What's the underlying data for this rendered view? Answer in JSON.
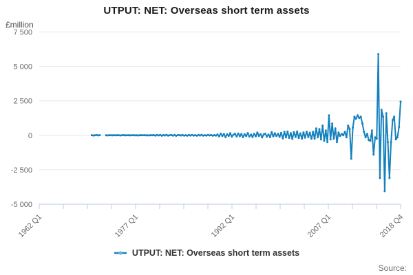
{
  "page": {
    "source_label": "Source:"
  },
  "colors": {
    "line": "#1380be",
    "legend_marker_center": "#6db0de",
    "grid": "#e6e6e6",
    "axis": "#c9d4e4",
    "title_text": "#1a1a1a",
    "tick_text": "#666666",
    "unit_text": "#4d4d4d",
    "legend_text": "#333333",
    "source_text": "#707070"
  },
  "chart_data": {
    "type": "line",
    "title": "UTPUT: NET: Overseas short term assets",
    "unit_label": "£million",
    "grid": "horizontal",
    "legend": {
      "position": "bottom",
      "label": "UTPUT: NET: Overseas short term assets"
    },
    "y_axis": {
      "min": -5000,
      "max": 7500,
      "ticks": [
        {
          "label": "7 500",
          "value": 7500
        },
        {
          "label": "5 000",
          "value": 5000
        },
        {
          "label": "2 500",
          "value": 2500
        },
        {
          "label": "0",
          "value": 0
        },
        {
          "label": "-2 500",
          "value": -2500
        },
        {
          "label": "-5 000",
          "value": -5000
        }
      ]
    },
    "x_axis": {
      "start": "1962 Q1",
      "end": "2018 Q4",
      "tick_count": 16,
      "labeled_ticks": [
        {
          "index": 0,
          "label": "1962 Q1"
        },
        {
          "index": 4,
          "label": "1977 Q1"
        },
        {
          "index": 8,
          "label": "1992 Q1"
        },
        {
          "index": 12,
          "label": "2007 Q1"
        },
        {
          "index": 15,
          "label": "2018 Q4"
        }
      ]
    },
    "series": [
      {
        "name": "UTPUT: NET: Overseas short term assets",
        "color": "#1380be",
        "frequency": "quarterly",
        "start": "1970 Q2",
        "values": [
          10,
          -15,
          5,
          20,
          -10,
          8,
          null,
          null,
          null,
          5,
          -8,
          12,
          3,
          -6,
          10,
          -4,
          8,
          2,
          -9,
          6,
          14,
          -5,
          3,
          9,
          -7,
          2,
          11,
          -3,
          6,
          -10,
          4,
          8,
          -2,
          12,
          -6,
          3,
          -8,
          10,
          2,
          15,
          -20,
          30,
          -10,
          25,
          -30,
          18,
          -12,
          35,
          -25,
          8,
          22,
          -18,
          28,
          -35,
          12,
          20,
          -15,
          32,
          -22,
          10,
          -28,
          24,
          -14,
          30,
          -20,
          16,
          -32,
          26,
          -10,
          34,
          -24,
          12,
          -18,
          28,
          -8,
          22,
          -30,
          15,
          -25,
          60,
          -80,
          120,
          -50,
          90,
          -130,
          70,
          -40,
          150,
          -100,
          45,
          110,
          -85,
          130,
          -60,
          95,
          -140,
          75,
          -55,
          160,
          -90,
          50,
          -120,
          105,
          -70,
          200,
          -45,
          85,
          -155,
          65,
          115,
          -95,
          55,
          -135,
          225,
          -75,
          145,
          -50,
          100,
          -110,
          180,
          -220,
          250,
          -150,
          270,
          -190,
          160,
          -260,
          230,
          -120,
          280,
          -200,
          140,
          -240,
          210,
          -170,
          260,
          -130,
          190,
          -250,
          250,
          -250,
          500,
          -150,
          450,
          -300,
          700,
          -400,
          350,
          -500,
          1450,
          -300,
          850,
          -250,
          500,
          -500,
          200,
          -50,
          100,
          0,
          250,
          -150,
          700,
          450,
          -1700,
          550,
          1350,
          1200,
          1450,
          1250,
          1350,
          850,
          250,
          -150,
          100,
          -350,
          -400,
          350,
          -1400,
          -150,
          -250,
          5900,
          -3100,
          1850,
          1350,
          -4050,
          1600,
          -500,
          -3100,
          -500,
          1100,
          1350,
          -300,
          -150,
          600,
          2450
        ]
      }
    ]
  }
}
